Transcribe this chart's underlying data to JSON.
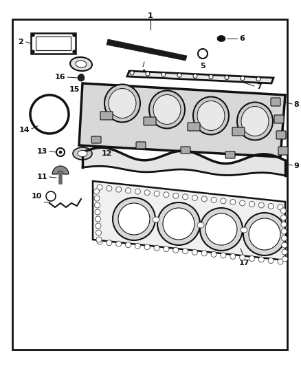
{
  "background_color": "#ffffff",
  "border_color": "#000000",
  "figsize": [
    4.38,
    5.33
  ],
  "dpi": 100,
  "dark": "#111111",
  "lw_gasket": 2.5,
  "lw_thin": 1.0
}
